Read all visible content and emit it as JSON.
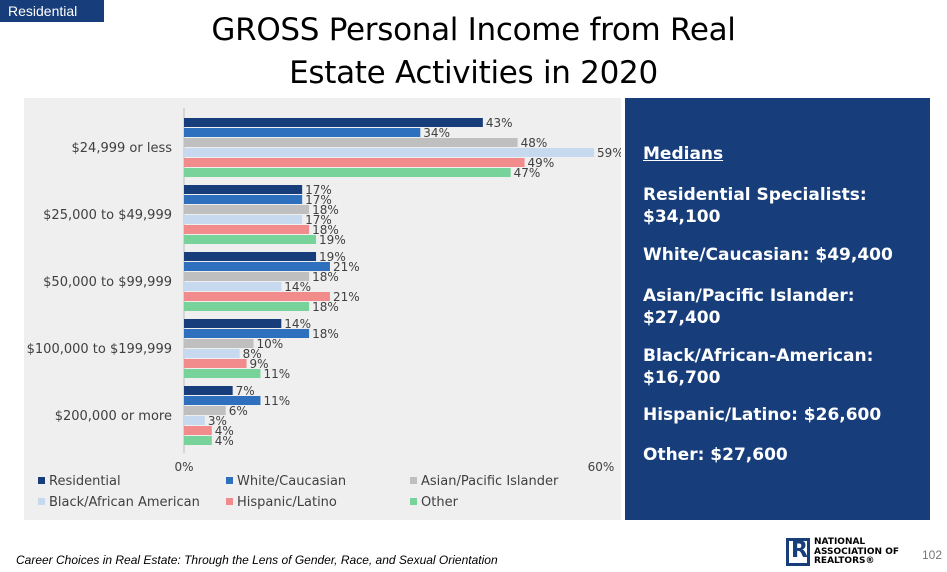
{
  "tag": "Residential",
  "title_line1": "GROSS Personal Income from Real",
  "title_line2": "Estate Activities in 2020",
  "colors": {
    "Residential": "#173d7a",
    "White/Caucasian": "#2e6fbe",
    "Asian/Pacific Islander": "#bfbfbf",
    "Black/African American": "#c6d9ef",
    "Hispanic/Latino": "#f28b8b",
    "Other": "#78d39b",
    "panel": "#173d7a"
  },
  "chart_data": {
    "type": "bar",
    "orientation": "horizontal",
    "categories": [
      "$24,999 or less",
      "$25,000 to $49,999",
      "$50,000 to $99,999",
      "$100,000 to $199,999",
      "$200,000 or more"
    ],
    "series": [
      {
        "name": "Residential",
        "values": [
          43,
          17,
          19,
          14,
          7
        ]
      },
      {
        "name": "White/Caucasian",
        "values": [
          34,
          17,
          21,
          18,
          11
        ]
      },
      {
        "name": "Asian/Pacific Islander",
        "values": [
          48,
          18,
          18,
          10,
          6
        ]
      },
      {
        "name": "Black/African American",
        "values": [
          59,
          17,
          14,
          8,
          3
        ]
      },
      {
        "name": "Hispanic/Latino",
        "values": [
          49,
          18,
          21,
          9,
          4
        ]
      },
      {
        "name": "Other",
        "values": [
          47,
          19,
          18,
          11,
          4
        ]
      }
    ],
    "value_suffix": "%",
    "xlim": [
      0,
      60
    ],
    "xticks": [
      "0%",
      "60%"
    ],
    "legend_position": "bottom",
    "grid": false
  },
  "medians": {
    "heading": "Medians",
    "items": [
      "Residential Specialists: $34,100",
      "White/Caucasian: $49,400",
      "Asian/Pacific Islander: $27,400",
      "Black/African-American: $16,700",
      "Hispanic/Latino: $26,600",
      "Other: $27,600"
    ]
  },
  "footer": {
    "source": "Career Choices in Real Estate: Through the Lens of Gender, Race, and Sexual Orientation",
    "logo_line1": "NATIONAL",
    "logo_line2": "ASSOCIATION OF",
    "logo_line3": "REALTORS®",
    "logo_letter": "R",
    "page_number": "102"
  }
}
